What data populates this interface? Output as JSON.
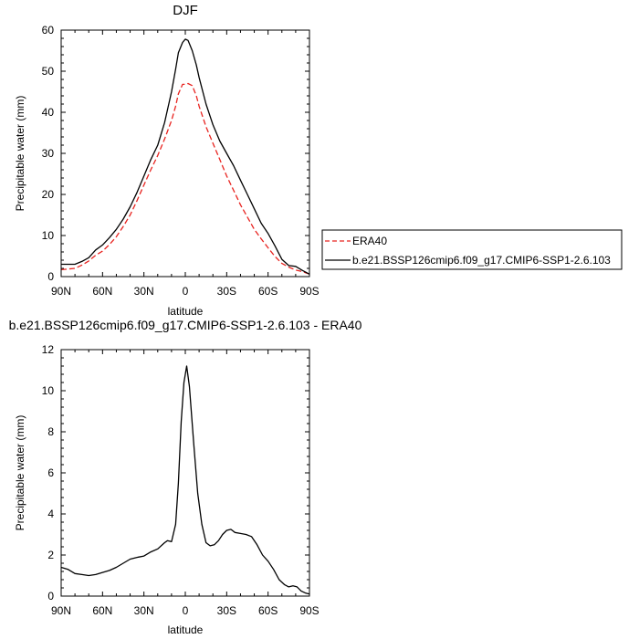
{
  "chart_data": [
    {
      "type": "line",
      "title": "DJF",
      "xlabel": "latitude",
      "ylabel": "Precipitable water (mm)",
      "xlim": [
        -90,
        90
      ],
      "ylim": [
        0,
        60
      ],
      "x_ticks": [
        -90,
        -60,
        -30,
        0,
        30,
        60,
        90
      ],
      "x_tick_labels": [
        "90N",
        "60N",
        "30N",
        "0",
        "30S",
        "60S",
        "90S"
      ],
      "y_ticks": [
        0,
        10,
        20,
        30,
        40,
        50,
        60
      ],
      "y_tick_labels": [
        "0",
        "10",
        "20",
        "30",
        "40",
        "50",
        "60"
      ],
      "legend_position": "right",
      "series": [
        {
          "name": "ERA40",
          "color": "#e8231f",
          "dash": "dashed",
          "x": [
            -90,
            -80,
            -75,
            -70,
            -65,
            -60,
            -55,
            -50,
            -45,
            -40,
            -35,
            -30,
            -25,
            -20,
            -15,
            -10,
            -7,
            -5,
            -2,
            0,
            2,
            5,
            8,
            10,
            15,
            20,
            25,
            30,
            35,
            40,
            45,
            50,
            55,
            60,
            65,
            70,
            75,
            80,
            85,
            90
          ],
          "y": [
            1.7,
            2,
            2.8,
            3.8,
            5.2,
            6.2,
            7.8,
            9.7,
            12.2,
            15,
            18.5,
            22.3,
            26,
            29.5,
            33.5,
            38,
            41.5,
            44.5,
            46.8,
            46.8,
            47,
            46.5,
            44,
            41.5,
            36.5,
            32.5,
            28.5,
            24.5,
            21,
            17.5,
            14.5,
            11.5,
            9.2,
            7,
            4.9,
            3.2,
            2.3,
            1.6,
            1.2,
            0.6
          ]
        },
        {
          "name": "b.e21.BSSP126cmip6.f09_g17.CMIP6-SSP1-2.6.103",
          "color": "#000000",
          "dash": "solid",
          "x": [
            -90,
            -80,
            -75,
            -70,
            -65,
            -60,
            -55,
            -50,
            -45,
            -40,
            -35,
            -30,
            -25,
            -20,
            -15,
            -10,
            -7,
            -5,
            -2,
            0,
            2,
            5,
            8,
            10,
            15,
            20,
            25,
            30,
            35,
            40,
            45,
            50,
            55,
            60,
            65,
            70,
            75,
            80,
            85,
            90
          ],
          "y": [
            3,
            3,
            3.7,
            4.6,
            6.5,
            7.7,
            9.5,
            11.5,
            14,
            17,
            20.5,
            24.5,
            28.5,
            32,
            37.5,
            45,
            50.5,
            54.5,
            57,
            57.8,
            57.5,
            55,
            51.5,
            48.5,
            42,
            37,
            33,
            30,
            27,
            23.5,
            20,
            16.5,
            13,
            10.5,
            7.5,
            4.2,
            2.7,
            2.5,
            1.5,
            0.6
          ]
        }
      ]
    },
    {
      "type": "line",
      "title": "b.e21.BSSP126cmip6.f09_g17.CMIP6-SSP1-2.6.103 - ERA40",
      "xlabel": "latitude",
      "ylabel": "Precipitable water (mm)",
      "xlim": [
        -90,
        90
      ],
      "ylim": [
        0,
        12
      ],
      "x_ticks": [
        -90,
        -60,
        -30,
        0,
        30,
        60,
        90
      ],
      "x_tick_labels": [
        "90N",
        "60N",
        "30N",
        "0",
        "30S",
        "60S",
        "90S"
      ],
      "y_ticks": [
        0,
        2,
        4,
        6,
        8,
        10,
        12
      ],
      "y_tick_labels": [
        "0",
        "2",
        "4",
        "6",
        "8",
        "10",
        "12"
      ],
      "series": [
        {
          "color": "#000000",
          "dash": "solid",
          "x": [
            -90,
            -85,
            -80,
            -75,
            -70,
            -65,
            -60,
            -55,
            -50,
            -45,
            -40,
            -37,
            -34,
            -30,
            -25,
            -20,
            -15,
            -13,
            -10,
            -7,
            -5,
            -3,
            -1,
            1,
            3,
            6,
            9,
            12,
            15,
            18,
            21,
            24,
            27,
            30,
            33,
            36,
            40,
            44,
            48,
            52,
            56,
            60,
            64,
            68,
            72,
            75,
            78,
            81,
            84,
            87,
            90
          ],
          "y": [
            1.4,
            1.3,
            1.1,
            1.05,
            1.0,
            1.05,
            1.15,
            1.25,
            1.4,
            1.6,
            1.8,
            1.85,
            1.9,
            1.95,
            2.15,
            2.3,
            2.6,
            2.7,
            2.65,
            3.5,
            5.5,
            8.5,
            10.4,
            11.2,
            10.2,
            7.5,
            5,
            3.5,
            2.6,
            2.45,
            2.5,
            2.7,
            3.0,
            3.2,
            3.25,
            3.1,
            3.05,
            3.0,
            2.9,
            2.5,
            2.0,
            1.7,
            1.3,
            0.8,
            0.55,
            0.45,
            0.5,
            0.45,
            0.25,
            0.15,
            0.1
          ]
        }
      ]
    }
  ]
}
